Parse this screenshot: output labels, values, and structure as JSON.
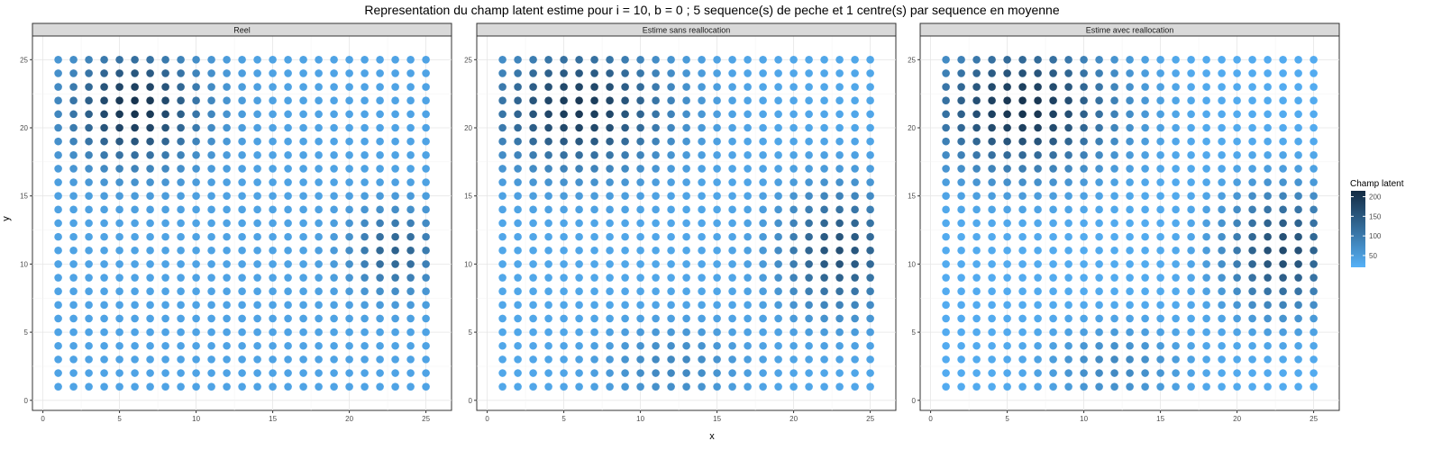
{
  "chart_data": {
    "type": "scatter",
    "title": "Representation du champ latent estime pour i = 10, b = 0 ; 5 sequence(s) de peche et 1 centre(s) par sequence en moyenne",
    "xlabel": "x",
    "ylabel": "y",
    "xlim": [
      0,
      25
    ],
    "ylim": [
      0,
      25
    ],
    "xticks": [
      0,
      5,
      10,
      15,
      20,
      25
    ],
    "yticks": [
      0,
      5,
      10,
      15,
      20,
      25
    ],
    "grid": true,
    "grid_points": {
      "x": [
        1,
        25
      ],
      "y": [
        1,
        25
      ],
      "step": 1
    },
    "legend": {
      "title": "Champ latent",
      "placement": "right",
      "range": [
        20,
        215
      ],
      "ticks": [
        50,
        100,
        150,
        200
      ],
      "color_low": "#56B1F7",
      "color_high": "#132B43"
    },
    "panels": [
      {
        "name": "Reel",
        "hotspots": [
          {
            "x": 6,
            "y": 21.5,
            "sx": 3.0,
            "sy": 2.8,
            "amp": 165
          },
          {
            "x": 23,
            "y": 11,
            "sx": 2.0,
            "sy": 2.0,
            "amp": 95
          }
        ],
        "base": 40
      },
      {
        "name": "Estime sans reallocation",
        "hotspots": [
          {
            "x": 6,
            "y": 21.5,
            "sx": 4.0,
            "sy": 3.0,
            "amp": 160
          },
          {
            "x": 23,
            "y": 11,
            "sx": 2.6,
            "sy": 3.0,
            "amp": 125
          },
          {
            "x": 12,
            "y": 2.5,
            "sx": 3.0,
            "sy": 2.0,
            "amp": 45
          }
        ],
        "base": 35
      },
      {
        "name": "Estime avec reallocation",
        "hotspots": [
          {
            "x": 6,
            "y": 21.5,
            "sx": 4.2,
            "sy": 3.2,
            "amp": 175
          },
          {
            "x": 23,
            "y": 11,
            "sx": 2.6,
            "sy": 3.0,
            "amp": 140
          },
          {
            "x": 12,
            "y": 2.5,
            "sx": 3.0,
            "sy": 2.0,
            "amp": 50
          }
        ],
        "base": 28
      }
    ]
  }
}
